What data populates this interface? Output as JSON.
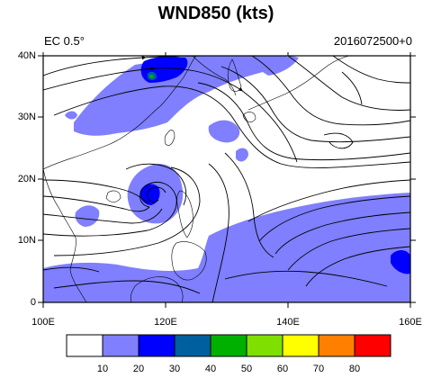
{
  "title": "WND850 (kts)",
  "subtitle_left": "EC 0.5°",
  "subtitle_right": "2016072500+0",
  "y_axis": {
    "ticks": [
      "0",
      "10N",
      "20N",
      "30N",
      "40N"
    ]
  },
  "x_axis": {
    "ticks": [
      "100E",
      "120E",
      "140E",
      "160E"
    ]
  },
  "map_extent": {
    "lon": [
      100,
      160
    ],
    "lat": [
      0,
      40
    ]
  },
  "colorbar": {
    "labels": [
      "10",
      "20",
      "30",
      "40",
      "50",
      "60",
      "70",
      "80"
    ],
    "colors": [
      "#ffffff",
      "#7f7fff",
      "#0000ff",
      "#005f9f",
      "#00b000",
      "#7fdf00",
      "#ffff00",
      "#ff8000",
      "#ff0000"
    ]
  },
  "colors": {
    "fill_20kt": "#7f7fff",
    "fill_30kt": "#0000ff",
    "fill_40kt": "#005f9f",
    "fill_50kt": "#00b000"
  }
}
